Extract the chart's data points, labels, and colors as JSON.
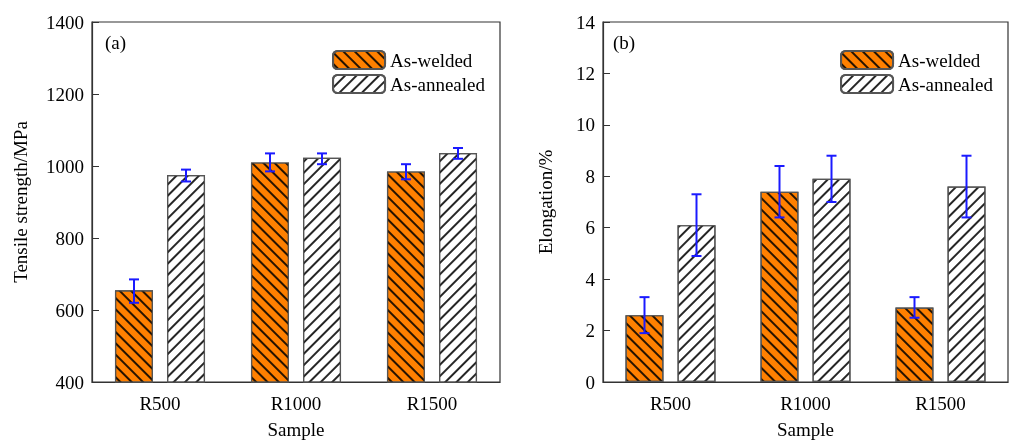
{
  "chart_data": [
    {
      "type": "bar",
      "title": "(a)",
      "xlabel": "Sample",
      "ylabel": "Tensile strength/MPa",
      "categories": [
        "R500",
        "R1000",
        "R1500"
      ],
      "series": [
        {
          "name": "As-welded",
          "color": "#ff8000",
          "values": [
            655,
            1010,
            985
          ],
          "errors": [
            [
              620,
              685
            ],
            [
              985,
              1035
            ],
            [
              963,
              1005
            ]
          ]
        },
        {
          "name": "As-annealed",
          "color": "#ffffff",
          "values": [
            975,
            1023,
            1036
          ],
          "errors": [
            [
              957,
              990
            ],
            [
              1005,
              1035
            ],
            [
              1020,
              1050
            ]
          ]
        }
      ],
      "ylim": [
        400,
        1400
      ],
      "yticks": [
        400,
        600,
        800,
        1000,
        1200,
        1400
      ],
      "legend": "top right"
    },
    {
      "type": "bar",
      "title": "(b)",
      "xlabel": "Sample",
      "ylabel": "Elongation/%",
      "categories": [
        "R500",
        "R1000",
        "R1500"
      ],
      "series": [
        {
          "name": "As-welded",
          "color": "#ff8000",
          "values": [
            2.6,
            7.4,
            2.9
          ],
          "errors": [
            [
              1.9,
              3.3
            ],
            [
              6.4,
              8.4
            ],
            [
              2.5,
              3.3
            ]
          ]
        },
        {
          "name": "As-annealed",
          "color": "#ffffff",
          "values": [
            6.1,
            7.9,
            7.6
          ],
          "errors": [
            [
              4.9,
              7.3
            ],
            [
              7.0,
              8.8
            ],
            [
              6.4,
              8.8
            ]
          ]
        }
      ],
      "ylim": [
        0,
        14
      ],
      "yticks": [
        0,
        2,
        4,
        6,
        8,
        10,
        12,
        14
      ],
      "legend": "top right"
    }
  ]
}
